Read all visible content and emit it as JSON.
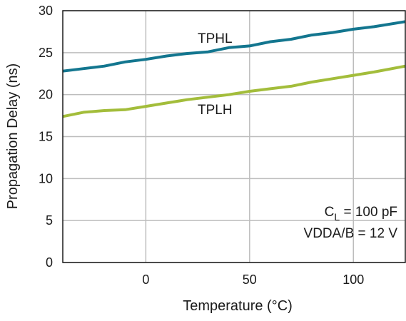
{
  "chart_data": {
    "type": "line",
    "xlabel": "Temperature (°C)",
    "ylabel": "Propagation Delay (ns)",
    "xlim": [
      -40,
      125
    ],
    "ylim": [
      0,
      30
    ],
    "x_ticks": [
      0,
      50,
      100
    ],
    "y_ticks": [
      0,
      5,
      10,
      15,
      20,
      25,
      30
    ],
    "grid": true,
    "series": [
      {
        "name": "TPHL",
        "color": "#13768f",
        "x": [
          -40,
          -30,
          -20,
          -10,
          0,
          10,
          20,
          30,
          40,
          50,
          60,
          70,
          80,
          90,
          100,
          110,
          125
        ],
        "y": [
          22.8,
          23.1,
          23.4,
          23.9,
          24.2,
          24.6,
          24.9,
          25.1,
          25.6,
          25.8,
          26.3,
          26.6,
          27.1,
          27.4,
          27.8,
          28.1,
          28.7
        ]
      },
      {
        "name": "TPLH",
        "color": "#a3bd3b",
        "x": [
          -40,
          -30,
          -20,
          -10,
          0,
          10,
          20,
          30,
          40,
          50,
          60,
          70,
          80,
          90,
          100,
          110,
          125
        ],
        "y": [
          17.4,
          17.9,
          18.1,
          18.2,
          18.6,
          19.0,
          19.4,
          19.7,
          20.0,
          20.4,
          20.7,
          21.0,
          21.5,
          21.9,
          22.3,
          22.7,
          23.4
        ]
      }
    ],
    "annotations": {
      "cl_prefix": "C",
      "cl_subscript": "L",
      "cl_value": " = 100 pF",
      "vdda": "VDDA/B = 12 V"
    }
  }
}
